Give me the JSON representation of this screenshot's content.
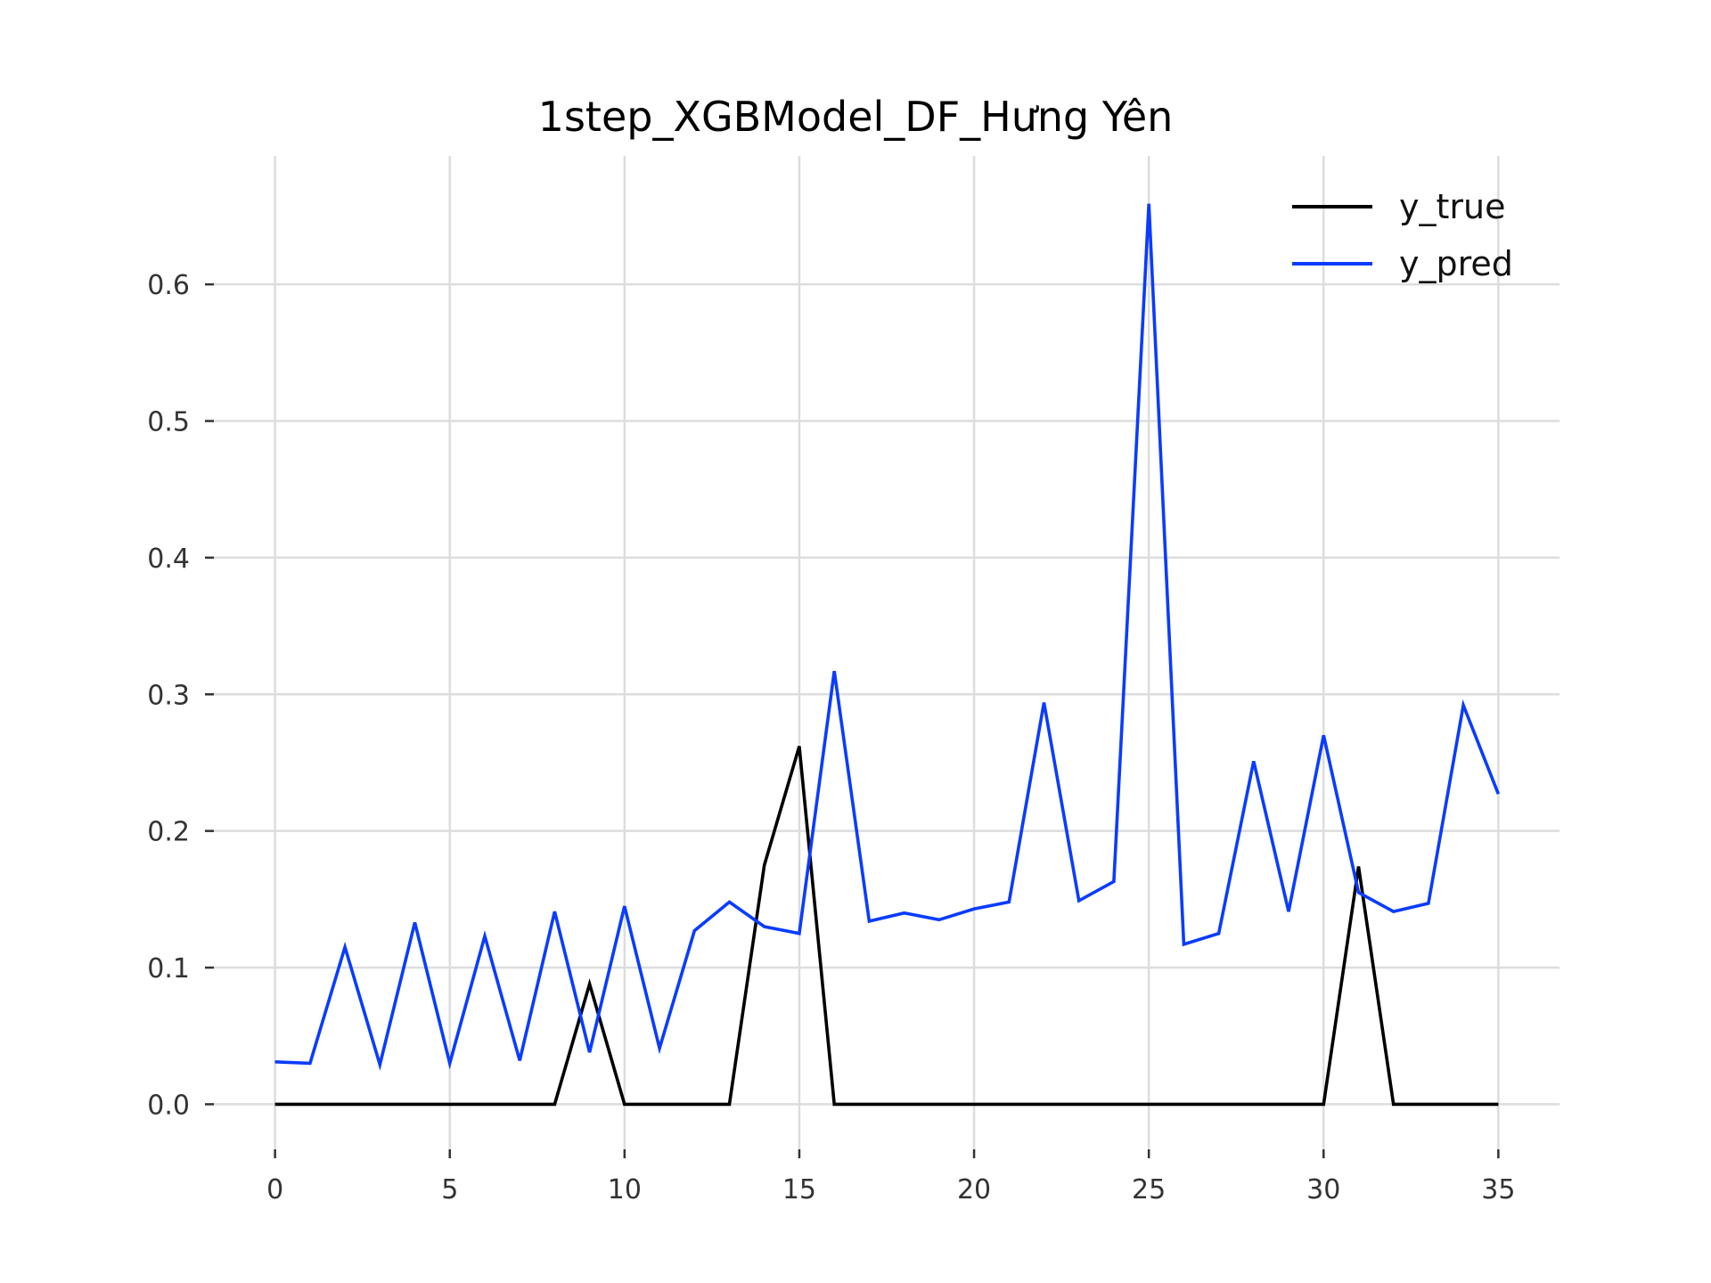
{
  "chart_data": {
    "type": "line",
    "title": "1step_XGBModel_DF_Hưng Yên",
    "xlabel": "",
    "ylabel": "",
    "xlim": [
      -1.75,
      36.75
    ],
    "ylim": [
      -0.033,
      0.694
    ],
    "xticks": [
      0,
      5,
      10,
      15,
      20,
      25,
      30,
      35
    ],
    "xtick_labels": [
      "0",
      "5",
      "10",
      "15",
      "20",
      "25",
      "30",
      "35"
    ],
    "yticks": [
      0.0,
      0.1,
      0.2,
      0.3,
      0.4,
      0.5,
      0.6
    ],
    "ytick_labels": [
      "0.0",
      "0.1",
      "0.2",
      "0.3",
      "0.4",
      "0.5",
      "0.6"
    ],
    "grid": true,
    "legend_position": "top-right",
    "x": [
      0,
      1,
      2,
      3,
      4,
      5,
      6,
      7,
      8,
      9,
      10,
      11,
      12,
      13,
      14,
      15,
      16,
      17,
      18,
      19,
      20,
      21,
      22,
      23,
      24,
      25,
      26,
      27,
      28,
      29,
      30,
      31,
      32,
      33,
      34,
      35
    ],
    "series": [
      {
        "name": "y_true",
        "color": "#000000",
        "values": [
          0,
          0,
          0,
          0,
          0,
          0,
          0,
          0,
          0,
          0.088,
          0,
          0,
          0,
          0,
          0.175,
          0.262,
          0,
          0,
          0,
          0,
          0,
          0,
          0,
          0,
          0,
          0,
          0,
          0,
          0,
          0,
          0,
          0.174,
          0,
          0,
          0,
          0
        ]
      },
      {
        "name": "y_pred",
        "color": "#0a3cff",
        "values": [
          0.031,
          0.03,
          0.115,
          0.029,
          0.133,
          0.03,
          0.123,
          0.032,
          0.141,
          0.038,
          0.145,
          0.041,
          0.127,
          0.148,
          0.13,
          0.125,
          0.317,
          0.134,
          0.14,
          0.135,
          0.143,
          0.148,
          0.294,
          0.149,
          0.163,
          0.659,
          0.117,
          0.125,
          0.251,
          0.141,
          0.27,
          0.155,
          0.141,
          0.147,
          0.292,
          0.227
        ]
      }
    ]
  }
}
